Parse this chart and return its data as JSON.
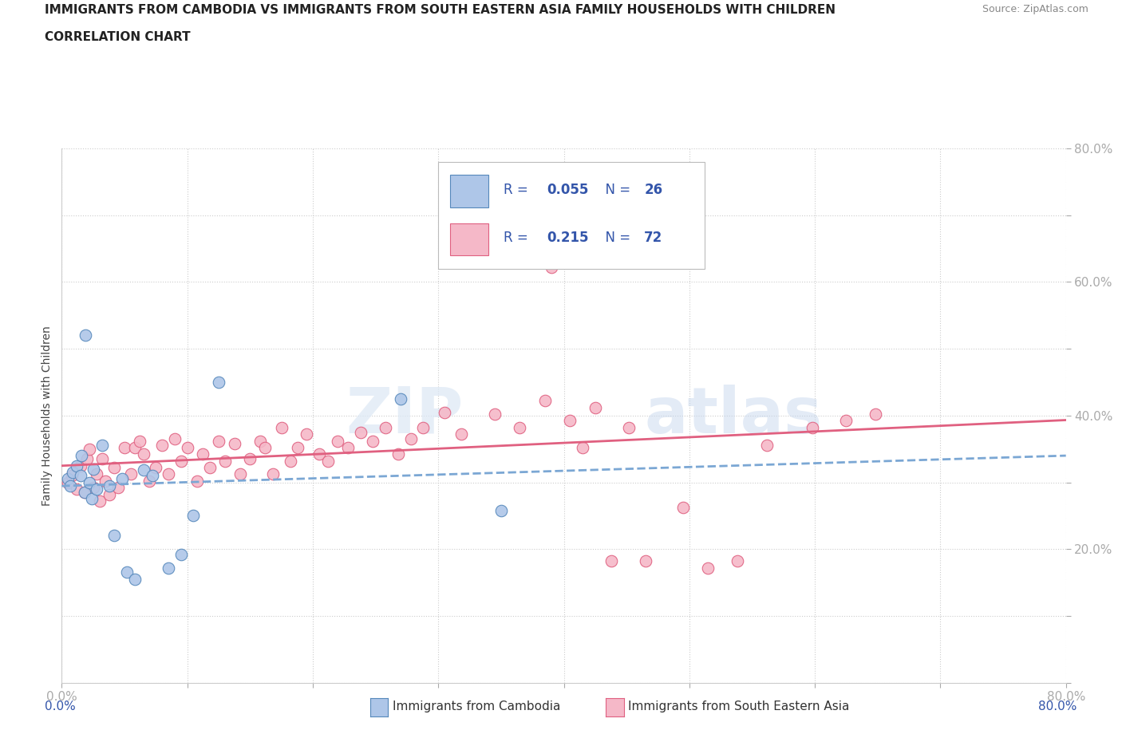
{
  "title_line1": "IMMIGRANTS FROM CAMBODIA VS IMMIGRANTS FROM SOUTH EASTERN ASIA FAMILY HOUSEHOLDS WITH CHILDREN",
  "title_line2": "CORRELATION CHART",
  "source_text": "Source: ZipAtlas.com",
  "ylabel": "Family Households with Children",
  "xlim": [
    0.0,
    0.8
  ],
  "ylim": [
    0.0,
    0.8
  ],
  "grid_color": "#cccccc",
  "background_color": "#ffffff",
  "series1_label": "Immigrants from Cambodia",
  "series2_label": "Immigrants from South Eastern Asia",
  "series1_fill_color": "#aec6e8",
  "series2_fill_color": "#f5b8c8",
  "series1_edge_color": "#5588bb",
  "series2_edge_color": "#e06080",
  "series1_line_color": "#7ba7d4",
  "series2_line_color": "#e06080",
  "legend_color": "#3355aa",
  "r1": 0.055,
  "r2": 0.215,
  "legend_R1": "0.055",
  "legend_N1": "26",
  "legend_R2": "0.215",
  "legend_N2": "72",
  "series1_x": [
    0.005,
    0.007,
    0.009,
    0.012,
    0.015,
    0.016,
    0.018,
    0.019,
    0.022,
    0.024,
    0.025,
    0.028,
    0.032,
    0.038,
    0.042,
    0.048,
    0.052,
    0.058,
    0.065,
    0.072,
    0.085,
    0.095,
    0.105,
    0.125,
    0.27,
    0.35
  ],
  "series1_y": [
    0.305,
    0.295,
    0.315,
    0.325,
    0.31,
    0.34,
    0.285,
    0.52,
    0.3,
    0.275,
    0.32,
    0.29,
    0.355,
    0.295,
    0.22,
    0.305,
    0.165,
    0.155,
    0.318,
    0.31,
    0.172,
    0.192,
    0.25,
    0.45,
    0.425,
    0.258
  ],
  "series2_x": [
    0.005,
    0.008,
    0.012,
    0.015,
    0.018,
    0.02,
    0.022,
    0.025,
    0.028,
    0.03,
    0.032,
    0.035,
    0.038,
    0.042,
    0.045,
    0.05,
    0.055,
    0.058,
    0.062,
    0.065,
    0.07,
    0.075,
    0.08,
    0.085,
    0.09,
    0.095,
    0.1,
    0.108,
    0.112,
    0.118,
    0.125,
    0.13,
    0.138,
    0.142,
    0.15,
    0.158,
    0.162,
    0.168,
    0.175,
    0.182,
    0.188,
    0.195,
    0.205,
    0.212,
    0.22,
    0.228,
    0.238,
    0.248,
    0.258,
    0.268,
    0.278,
    0.288,
    0.305,
    0.318,
    0.345,
    0.365,
    0.385,
    0.405,
    0.425,
    0.452,
    0.472,
    0.495,
    0.515,
    0.538,
    0.562,
    0.598,
    0.625,
    0.648,
    0.39,
    0.415,
    0.438,
    0.465
  ],
  "series2_y": [
    0.3,
    0.31,
    0.29,
    0.325,
    0.285,
    0.335,
    0.35,
    0.292,
    0.312,
    0.272,
    0.335,
    0.302,
    0.282,
    0.322,
    0.292,
    0.352,
    0.312,
    0.352,
    0.362,
    0.342,
    0.302,
    0.322,
    0.355,
    0.312,
    0.365,
    0.332,
    0.352,
    0.302,
    0.342,
    0.322,
    0.362,
    0.332,
    0.358,
    0.312,
    0.335,
    0.362,
    0.352,
    0.312,
    0.382,
    0.332,
    0.352,
    0.372,
    0.342,
    0.332,
    0.362,
    0.352,
    0.375,
    0.362,
    0.382,
    0.342,
    0.365,
    0.382,
    0.405,
    0.372,
    0.402,
    0.382,
    0.422,
    0.392,
    0.412,
    0.382,
    0.635,
    0.262,
    0.172,
    0.182,
    0.355,
    0.382,
    0.392,
    0.402,
    0.622,
    0.352,
    0.182,
    0.182
  ]
}
